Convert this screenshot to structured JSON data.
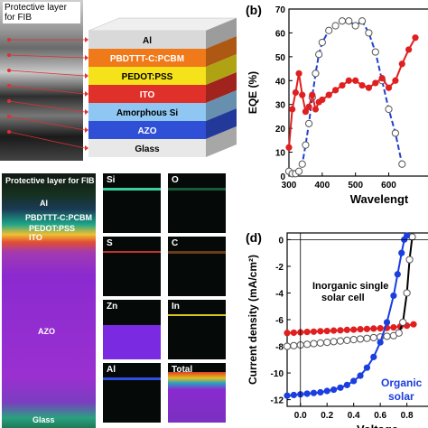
{
  "panel_a": {
    "tem_label": "Protective layer for FIB",
    "layers": [
      {
        "label": "Al",
        "color": "#d9d9d9",
        "text_color": "#000000"
      },
      {
        "label": "PBDTTT-C:PCBM",
        "color": "#f07a1a",
        "text_color": "#ffffff"
      },
      {
        "label": "PEDOT:PSS",
        "color": "#f5e21a",
        "text_color": "#000000"
      },
      {
        "label": "ITO",
        "color": "#e0302a",
        "text_color": "#ffffff"
      },
      {
        "label": "Amorphous Si",
        "color": "#8fc6f2",
        "text_color": "#000000"
      },
      {
        "label": "AZO",
        "color": "#2f4fd6",
        "text_color": "#ffffff"
      },
      {
        "label": "Glass",
        "color": "#e8e8e8",
        "text_color": "#000000"
      }
    ]
  },
  "panel_c": {
    "big_map_labels": [
      "Protective layer for FIB",
      "Al",
      "PBDTTT-C:PCBM",
      "PEDOT:PSS",
      "ITO",
      "AZO",
      "Glass"
    ],
    "maps": [
      {
        "label": "Si",
        "band_color": "#39d0a0"
      },
      {
        "label": "O",
        "band_color": "#1a5a3a"
      },
      {
        "label": "S",
        "band_color": "#c23030"
      },
      {
        "label": "C",
        "band_color": "#6a3a1a"
      },
      {
        "label": "Zn",
        "band_color": "#7a2ae0"
      },
      {
        "label": "In",
        "band_color": "#d6c420"
      },
      {
        "label": "Al",
        "band_color": "#3050e0"
      },
      {
        "label": "Total",
        "band_color": "#e04020"
      }
    ]
  },
  "panel_b": {
    "panel_label": "(b)",
    "chart_data": {
      "type": "line",
      "xlabel": "Wavelengt",
      "ylabel": "EQE (%)",
      "xlim": [
        300,
        680
      ],
      "ylim": [
        0,
        70
      ],
      "xticks": [
        "300",
        "400",
        "500",
        "600"
      ],
      "yticks": [
        "0",
        "10",
        "20",
        "30",
        "40",
        "50",
        "60",
        "70"
      ],
      "series": [
        {
          "style": "open-circle",
          "line_color": "#2040d0",
          "x": [
            300,
            310,
            320,
            330,
            340,
            350,
            360,
            370,
            380,
            390,
            400,
            420,
            440,
            460,
            480,
            500,
            520,
            540,
            560,
            580,
            600,
            620,
            640
          ],
          "y": [
            2,
            1,
            1,
            2,
            5,
            13,
            22,
            33,
            43,
            51,
            56,
            61,
            63,
            65,
            65,
            63,
            65,
            60,
            52,
            40,
            28,
            18,
            5
          ]
        },
        {
          "style": "filled-circle",
          "color": "#e02020",
          "x": [
            300,
            310,
            320,
            330,
            340,
            350,
            360,
            370,
            380,
            390,
            400,
            420,
            440,
            460,
            480,
            500,
            520,
            540,
            560,
            580,
            600,
            620,
            640,
            660,
            680
          ],
          "y": [
            12,
            28,
            35,
            43,
            34,
            27,
            29,
            34,
            28,
            31,
            32,
            34,
            36,
            38,
            40,
            40,
            38,
            37,
            39,
            41,
            37,
            40,
            47,
            53,
            58
          ]
        }
      ]
    }
  },
  "panel_d": {
    "panel_label": "(d)",
    "annotation_inorganic": [
      "Inorganic single",
      "solar cell"
    ],
    "annotation_organic": [
      "Organic",
      "solar"
    ],
    "chart_data": {
      "type": "line",
      "xlabel": "Voltage",
      "ylabel": "Current density (mA/cm²)",
      "xlim": [
        -0.1,
        0.85
      ],
      "ylim": [
        -12.5,
        0.5
      ],
      "xticks": [
        "0.0",
        "0.2",
        "0.4",
        "0.6",
        "0.8"
      ],
      "yticks": [
        "0",
        "-2",
        "-4",
        "-6",
        "-8",
        "-10",
        "-12"
      ],
      "series": [
        {
          "style": "filled-circle",
          "color": "#e02020",
          "x": [
            -0.1,
            -0.05,
            0.0,
            0.05,
            0.1,
            0.15,
            0.2,
            0.25,
            0.3,
            0.35,
            0.4,
            0.45,
            0.5,
            0.55,
            0.6,
            0.65,
            0.7,
            0.75,
            0.8,
            0.85
          ],
          "y": [
            -7.0,
            -6.98,
            -6.95,
            -6.92,
            -6.9,
            -6.87,
            -6.85,
            -6.82,
            -6.8,
            -6.77,
            -6.75,
            -6.72,
            -6.7,
            -6.67,
            -6.65,
            -6.62,
            -6.58,
            -6.52,
            -6.45,
            -6.35
          ]
        },
        {
          "style": "open-circle",
          "color": "#000000",
          "x": [
            -0.1,
            -0.05,
            0.0,
            0.05,
            0.1,
            0.15,
            0.2,
            0.25,
            0.3,
            0.35,
            0.4,
            0.45,
            0.5,
            0.55,
            0.6,
            0.65,
            0.7,
            0.74,
            0.77,
            0.8,
            0.82,
            0.84
          ],
          "y": [
            -8.0,
            -7.95,
            -7.9,
            -7.85,
            -7.8,
            -7.75,
            -7.7,
            -7.65,
            -7.6,
            -7.55,
            -7.5,
            -7.45,
            -7.4,
            -7.35,
            -7.3,
            -7.25,
            -7.2,
            -7.0,
            -6.2,
            -4.0,
            -1.5,
            0.2
          ]
        },
        {
          "style": "filled-circle",
          "color": "#1a3ee0",
          "x": [
            -0.1,
            -0.05,
            0.0,
            0.05,
            0.1,
            0.15,
            0.2,
            0.25,
            0.3,
            0.35,
            0.4,
            0.45,
            0.5,
            0.55,
            0.6,
            0.65,
            0.7,
            0.73,
            0.76,
            0.78,
            0.8
          ],
          "y": [
            -11.7,
            -11.65,
            -11.6,
            -11.55,
            -11.5,
            -11.45,
            -11.35,
            -11.25,
            -11.1,
            -10.9,
            -10.6,
            -10.2,
            -9.6,
            -8.8,
            -7.7,
            -6.2,
            -4.2,
            -2.6,
            -1.0,
            0.0,
            0.3
          ]
        }
      ]
    }
  }
}
